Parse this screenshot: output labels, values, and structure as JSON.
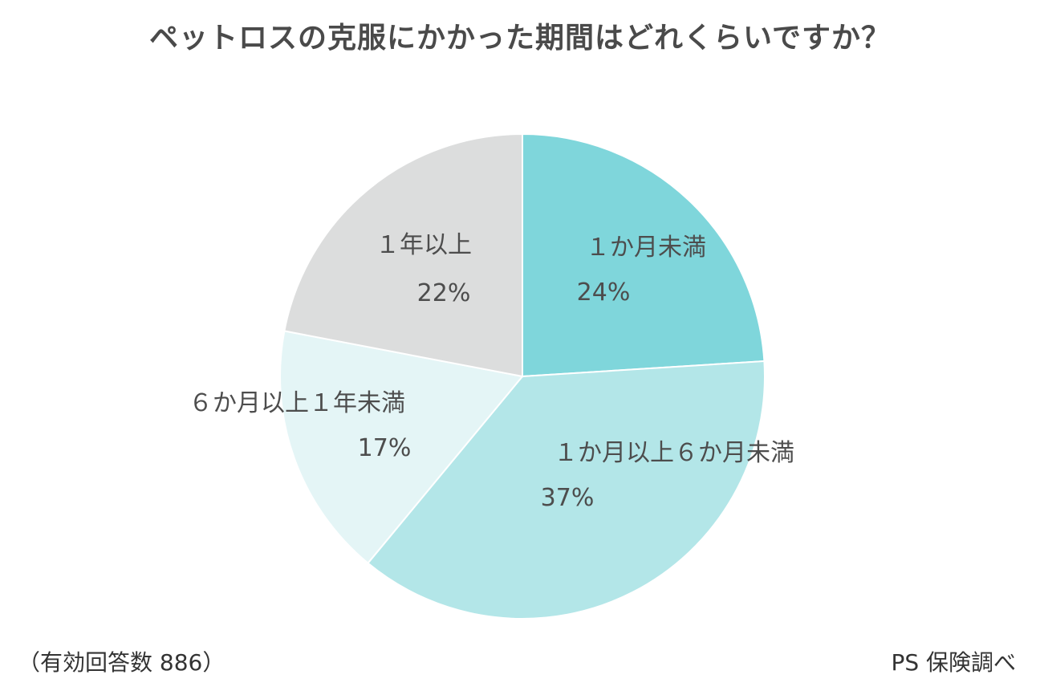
{
  "chart_data": {
    "type": "pie",
    "title": "ペットロスの克服にかかった期間はどれくらいですか？",
    "categories": [
      "１か月未満",
      "１か月以上６か月未満",
      "６か月以上１年未満",
      "１年以上"
    ],
    "values": [
      24,
      37,
      17,
      22
    ],
    "value_labels": [
      "24%",
      "37%",
      "17%",
      "22%"
    ],
    "colors": [
      "#7fd6db",
      "#b3e6e8",
      "#e4f5f6",
      "#dcdddd"
    ],
    "start_direction": "12 o'clock, clockwise"
  },
  "notes": {
    "sample": "（有効回答数 886）",
    "source": "PS 保険調べ"
  }
}
